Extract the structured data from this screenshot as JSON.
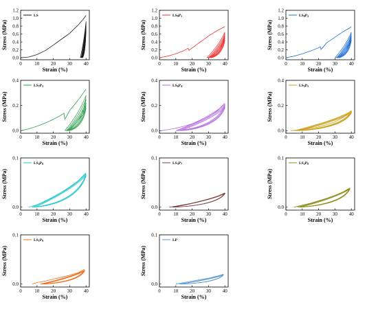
{
  "chart_data": [
    {
      "type": "line",
      "legend": "LS",
      "legend_sub": "",
      "color": "#1a1a1a",
      "xlabel": "Strain (%)",
      "ylabel": "Stress (MPa)",
      "xlim": [
        0,
        42
      ],
      "ylim": [
        -0.05,
        1.2
      ],
      "xticks": [
        "0",
        "10",
        "20",
        "30",
        "40"
      ],
      "xtick_values": [
        0,
        10,
        20,
        30,
        40
      ],
      "yticks": [
        "0.0",
        "0.2",
        "0.4",
        "0.6",
        "0.8",
        "1.0",
        "1.2"
      ],
      "ytick_values": [
        0,
        0.2,
        0.4,
        0.6,
        0.8,
        1.0,
        1.2
      ],
      "legend_position": "top-left",
      "loading": {
        "x": [
          0,
          5,
          10,
          15,
          20,
          25,
          30,
          35,
          38,
          40
        ],
        "y": [
          0,
          0.02,
          0.08,
          0.18,
          0.32,
          0.47,
          0.62,
          0.82,
          0.96,
          1.07
        ]
      },
      "cycles": [
        {
          "start": 36.5,
          "end": 40,
          "peak": 0.92
        },
        {
          "start": 37,
          "end": 40,
          "peak": 0.88
        },
        {
          "start": 37.3,
          "end": 40,
          "peak": 0.84
        },
        {
          "start": 37.6,
          "end": 40,
          "peak": 0.8
        },
        {
          "start": 37.9,
          "end": 40,
          "peak": 0.76
        }
      ]
    },
    {
      "type": "line",
      "legend": "LS",
      "legend_sub": "9P1",
      "color": "#ee3333",
      "xlabel": "Strain (%)",
      "ylabel": "Stress (MPa)",
      "xlim": [
        0,
        42
      ],
      "ylim": [
        -0.05,
        1.2
      ],
      "xticks": [
        "0",
        "10",
        "20",
        "30",
        "40"
      ],
      "xtick_values": [
        0,
        10,
        20,
        30,
        40
      ],
      "yticks": [
        "0.0",
        "0.2",
        "0.4",
        "0.6",
        "0.8",
        "1.0",
        "1.2"
      ],
      "ytick_values": [
        0,
        0.2,
        0.4,
        0.6,
        0.8,
        1.0,
        1.2
      ],
      "legend_position": "top-left",
      "loading": {
        "x": [
          0,
          5,
          10,
          15,
          17.5,
          18,
          25,
          30,
          35,
          40
        ],
        "y": [
          0,
          0.04,
          0.1,
          0.18,
          0.24,
          0.19,
          0.4,
          0.55,
          0.68,
          0.79
        ]
      },
      "cycles": [
        {
          "start": 29,
          "end": 40,
          "peak": 0.65
        },
        {
          "start": 30,
          "end": 40,
          "peak": 0.6
        },
        {
          "start": 30.5,
          "end": 40,
          "peak": 0.55
        },
        {
          "start": 31,
          "end": 40,
          "peak": 0.5
        },
        {
          "start": 31.5,
          "end": 40,
          "peak": 0.45
        }
      ]
    },
    {
      "type": "line",
      "legend": "LS",
      "legend_sub": "8P2",
      "color": "#1f6fd1",
      "xlabel": "Strain (%)",
      "ylabel": "Stress (MPa)",
      "xlim": [
        0,
        42
      ],
      "ylim": [
        -0.05,
        1.2
      ],
      "xticks": [
        "0",
        "10",
        "20",
        "30",
        "40"
      ],
      "xtick_values": [
        0,
        10,
        20,
        30,
        40
      ],
      "yticks": [
        "0.0",
        "0.2",
        "0.4",
        "0.6",
        "0.8",
        "1.0",
        "1.2"
      ],
      "ytick_values": [
        0,
        0.2,
        0.4,
        0.6,
        0.8,
        1.0,
        1.2
      ],
      "legend_position": "top-left",
      "loading": {
        "x": [
          0,
          5,
          10,
          15,
          20,
          21,
          21.5,
          25,
          30,
          35,
          40
        ],
        "y": [
          0,
          0.04,
          0.1,
          0.17,
          0.25,
          0.28,
          0.21,
          0.38,
          0.52,
          0.66,
          0.78
        ]
      },
      "cycles": [
        {
          "start": 30,
          "end": 40,
          "peak": 0.65
        },
        {
          "start": 31,
          "end": 40,
          "peak": 0.6
        },
        {
          "start": 31.5,
          "end": 40,
          "peak": 0.55
        },
        {
          "start": 32,
          "end": 40,
          "peak": 0.5
        },
        {
          "start": 32.5,
          "end": 40,
          "peak": 0.45
        }
      ]
    },
    {
      "type": "line",
      "legend": "LS",
      "legend_sub": "7P3",
      "color": "#2e9e4f",
      "xlabel": "Strain (%)",
      "ylabel": "Stress (MPa)",
      "xlim": [
        0,
        42
      ],
      "ylim": [
        -0.02,
        0.4
      ],
      "xticks": [
        "0",
        "10",
        "20",
        "30",
        "40"
      ],
      "xtick_values": [
        0,
        10,
        20,
        30,
        40
      ],
      "yticks": [
        "0.0",
        "0.2",
        "0.4"
      ],
      "ytick_values": [
        0,
        0.2,
        0.4
      ],
      "legend_position": "top-left",
      "loading": {
        "x": [
          0,
          5,
          10,
          15,
          20,
          25,
          26.5,
          27,
          30,
          35,
          40
        ],
        "y": [
          0,
          0.015,
          0.035,
          0.06,
          0.09,
          0.125,
          0.14,
          0.09,
          0.16,
          0.24,
          0.33
        ]
      },
      "cycles": [
        {
          "start": 27,
          "end": 40,
          "peak": 0.28
        },
        {
          "start": 28,
          "end": 40,
          "peak": 0.25
        },
        {
          "start": 28.5,
          "end": 40,
          "peak": 0.22
        },
        {
          "start": 29,
          "end": 40,
          "peak": 0.2
        },
        {
          "start": 29.5,
          "end": 40,
          "peak": 0.18
        }
      ]
    },
    {
      "type": "line",
      "legend": "LS",
      "legend_sub": "6P4",
      "color": "#b46be0",
      "xlabel": "Strain (%)",
      "ylabel": "Stress (MPa)",
      "xlim": [
        0,
        42
      ],
      "ylim": [
        -0.02,
        0.4
      ],
      "xticks": [
        "0",
        "10",
        "20",
        "30",
        "40"
      ],
      "xtick_values": [
        0,
        10,
        20,
        30,
        40
      ],
      "yticks": [
        "0.0",
        "0.2",
        "0.4"
      ],
      "ytick_values": [
        0,
        0.2,
        0.4
      ],
      "legend_position": "top-left",
      "loading": {
        "x": [
          1,
          5,
          10,
          15,
          20,
          25,
          30,
          35,
          40
        ],
        "y": [
          0,
          0.008,
          0.02,
          0.035,
          0.055,
          0.08,
          0.11,
          0.155,
          0.22
        ]
      },
      "cycles": [
        {
          "start": 10,
          "end": 40,
          "peak": 0.21
        },
        {
          "start": 11,
          "end": 40,
          "peak": 0.2
        },
        {
          "start": 12,
          "end": 40,
          "peak": 0.19
        },
        {
          "start": 13,
          "end": 40,
          "peak": 0.18
        }
      ]
    },
    {
      "type": "line",
      "legend": "LS",
      "legend_sub": "5P5",
      "color": "#c9a21c",
      "xlabel": "Strain (%)",
      "ylabel": "Stress (MPa)",
      "xlim": [
        0,
        42
      ],
      "ylim": [
        -0.02,
        0.4
      ],
      "xticks": [
        "0",
        "10",
        "20",
        "30",
        "40"
      ],
      "xtick_values": [
        0,
        10,
        20,
        30,
        40
      ],
      "yticks": [
        "0.0",
        "0.2",
        "0.4"
      ],
      "ytick_values": [
        0,
        0.2,
        0.4
      ],
      "legend_position": "top-left",
      "loading": {
        "x": [
          3,
          10,
          15,
          20,
          25,
          30,
          35,
          40
        ],
        "y": [
          0,
          0.008,
          0.018,
          0.03,
          0.048,
          0.07,
          0.105,
          0.16
        ]
      },
      "cycles": [
        {
          "start": 5,
          "end": 40,
          "peak": 0.155
        },
        {
          "start": 6,
          "end": 40,
          "peak": 0.15
        },
        {
          "start": 7,
          "end": 40,
          "peak": 0.145
        },
        {
          "start": 8,
          "end": 40,
          "peak": 0.14
        }
      ]
    },
    {
      "type": "line",
      "legend": "LS",
      "legend_sub": "4P6",
      "color": "#1fc4cc",
      "xlabel": "Strain (%)",
      "ylabel": "Stress (MPa)",
      "xlim": [
        0,
        42
      ],
      "ylim": [
        -0.006,
        0.1
      ],
      "xticks": [
        "0",
        "10",
        "20",
        "30",
        "40"
      ],
      "xtick_values": [
        0,
        10,
        20,
        30,
        40
      ],
      "yticks": [
        "0.0",
        "0.1"
      ],
      "ytick_values": [
        0,
        0.1
      ],
      "legend_position": "top-left",
      "loading": {
        "x": [
          5,
          10,
          15,
          20,
          25,
          30,
          35,
          40
        ],
        "y": [
          0,
          0.005,
          0.012,
          0.02,
          0.029,
          0.04,
          0.053,
          0.07
        ]
      },
      "cycles": [
        {
          "start": 7,
          "end": 40,
          "peak": 0.068
        },
        {
          "start": 8,
          "end": 40,
          "peak": 0.066
        },
        {
          "start": 9,
          "end": 40,
          "peak": 0.064
        }
      ]
    },
    {
      "type": "line",
      "legend": "LS",
      "legend_sub": "3P7",
      "color": "#7a3b3b",
      "xlabel": "Strain (%)",
      "ylabel": "Stress (MPa)",
      "xlim": [
        0,
        42
      ],
      "ylim": [
        -0.006,
        0.1
      ],
      "xticks": [
        "0",
        "10",
        "20",
        "30",
        "40"
      ],
      "xtick_values": [
        0,
        10,
        20,
        30,
        40
      ],
      "yticks": [
        "0.0",
        "0.1"
      ],
      "ytick_values": [
        0,
        0.1
      ],
      "legend_position": "top-left",
      "loading": {
        "x": [
          6,
          10,
          15,
          20,
          25,
          30,
          35,
          40
        ],
        "y": [
          0,
          0.002,
          0.005,
          0.008,
          0.012,
          0.016,
          0.021,
          0.029
        ]
      },
      "cycles": [
        {
          "start": 8,
          "end": 40,
          "peak": 0.028
        },
        {
          "start": 9,
          "end": 40,
          "peak": 0.027
        }
      ]
    },
    {
      "type": "line",
      "legend": "LS",
      "legend_sub": "2P8",
      "color": "#8c8c14",
      "xlabel": "Strain (%)",
      "ylabel": "Stress (MPa)",
      "xlim": [
        0,
        42
      ],
      "ylim": [
        -0.006,
        0.1
      ],
      "xticks": [
        "0",
        "10",
        "20",
        "30",
        "40"
      ],
      "xtick_values": [
        0,
        10,
        20,
        30,
        40
      ],
      "yticks": [
        "0.0",
        "0.1"
      ],
      "ytick_values": [
        0,
        0.1
      ],
      "legend_position": "top-left",
      "loading": {
        "x": [
          5,
          10,
          15,
          20,
          25,
          30,
          35,
          39
        ],
        "y": [
          0,
          0.004,
          0.008,
          0.013,
          0.018,
          0.024,
          0.031,
          0.039
        ]
      },
      "cycles": [
        {
          "start": 7,
          "end": 39,
          "peak": 0.038
        },
        {
          "start": 8,
          "end": 39,
          "peak": 0.037
        },
        {
          "start": 9,
          "end": 39,
          "peak": 0.036
        }
      ]
    },
    {
      "type": "line",
      "legend": "LS",
      "legend_sub": "1P9",
      "color": "#f06c1a",
      "xlabel": "Strain (%)",
      "ylabel": "Stress (MPa)",
      "xlim": [
        0,
        42
      ],
      "ylim": [
        -0.006,
        0.1
      ],
      "xticks": [
        "0",
        "10",
        "20",
        "30",
        "40"
      ],
      "xtick_values": [
        0,
        10,
        20,
        30,
        40
      ],
      "yticks": [
        "0.0",
        "0.1"
      ],
      "ytick_values": [
        0,
        0.1
      ],
      "legend_position": "top-left",
      "loading": {
        "x": [
          7,
          10,
          15,
          20,
          25,
          30,
          35,
          39
        ],
        "y": [
          0,
          0.003,
          0.006,
          0.01,
          0.014,
          0.018,
          0.023,
          0.03
        ]
      },
      "cycles": [
        {
          "start": 12,
          "end": 39,
          "peak": 0.028
        },
        {
          "start": 13,
          "end": 39,
          "peak": 0.027
        },
        {
          "start": 14,
          "end": 39,
          "peak": 0.026
        }
      ]
    },
    {
      "type": "line",
      "legend": "LP",
      "legend_sub": "",
      "color": "#5a95cf",
      "xlabel": "Strain (%)",
      "ylabel": "Stress (MPa)",
      "xlim": [
        0,
        42
      ],
      "ylim": [
        -0.006,
        0.1
      ],
      "xticks": [
        "0",
        "10",
        "20",
        "30",
        "40"
      ],
      "xtick_values": [
        0,
        10,
        20,
        30,
        40
      ],
      "yticks": [
        "0.0",
        "0.1"
      ],
      "ytick_values": [
        0,
        0.1
      ],
      "legend_position": "top-left",
      "loading": {
        "x": [
          10,
          15,
          20,
          25,
          30,
          35,
          39
        ],
        "y": [
          0,
          0.003,
          0.006,
          0.009,
          0.012,
          0.016,
          0.02
        ]
      },
      "cycles": [
        {
          "start": 12,
          "end": 39,
          "peak": 0.019
        },
        {
          "start": 13,
          "end": 39,
          "peak": 0.018
        }
      ]
    }
  ]
}
